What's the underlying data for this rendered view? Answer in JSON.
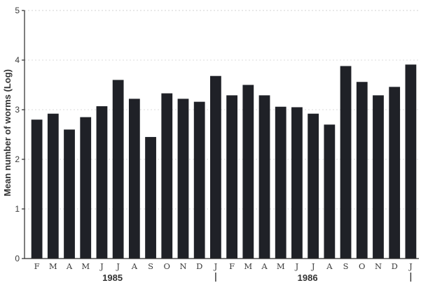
{
  "chart_data": {
    "type": "bar",
    "ylabel": "Mean number of worms (Log)",
    "xlabel": "",
    "ylim": [
      0,
      5
    ],
    "yticks": [
      "0",
      "1",
      "2",
      "3",
      "4",
      "5"
    ],
    "grid": "horizontal dotted",
    "categories": [
      "F",
      "M",
      "A",
      "M",
      "J",
      "J",
      "A",
      "S",
      "O",
      "N",
      "D",
      "J",
      "F",
      "M",
      "A",
      "M",
      "J",
      "J",
      "A",
      "S",
      "O",
      "N",
      "D",
      "J"
    ],
    "values": [
      2.8,
      2.92,
      2.6,
      2.85,
      3.07,
      3.6,
      3.22,
      2.45,
      3.33,
      3.22,
      3.16,
      3.68,
      3.29,
      3.5,
      3.29,
      3.06,
      3.05,
      2.92,
      2.7,
      3.88,
      3.56,
      3.29,
      3.46,
      3.91
    ],
    "year_labels": [
      {
        "label": "1985",
        "category_index": 5
      },
      {
        "label": "1986",
        "category_index": 17
      }
    ],
    "year_separators": [
      11,
      23
    ]
  }
}
